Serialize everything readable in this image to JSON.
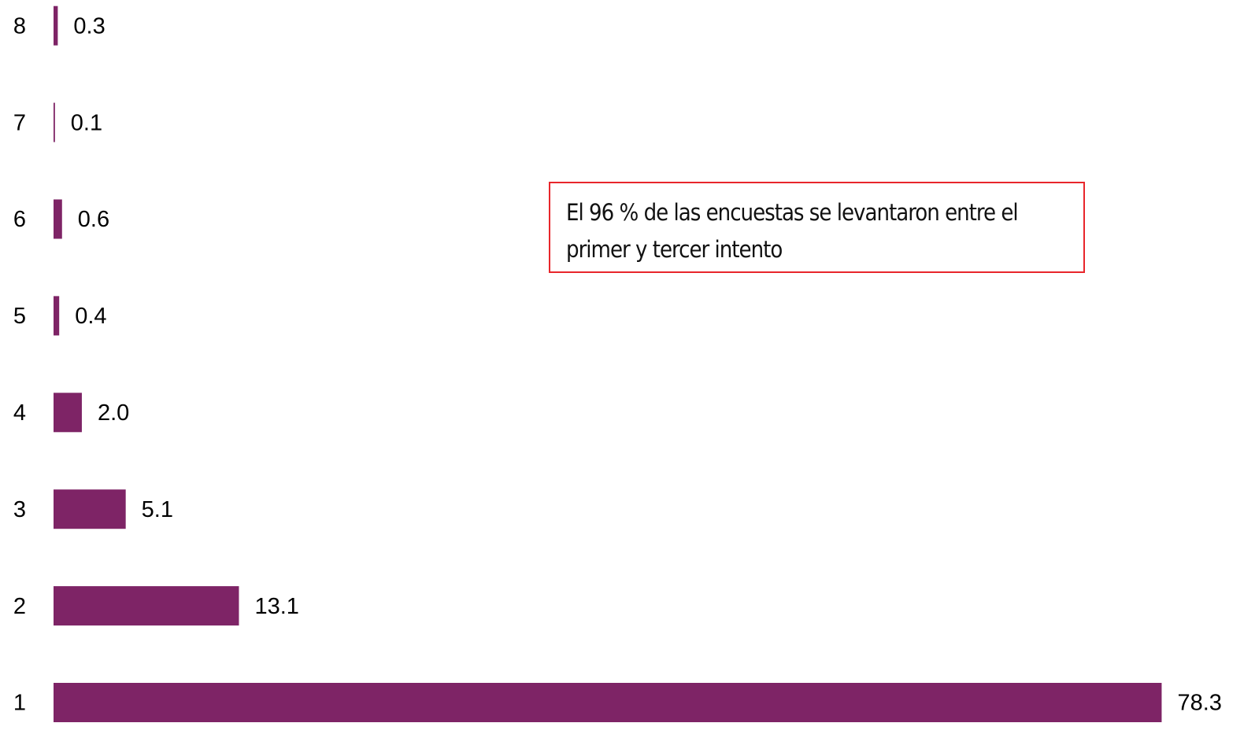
{
  "chart_data": {
    "type": "bar",
    "orientation": "horizontal",
    "categories": [
      "1",
      "2",
      "3",
      "4",
      "5",
      "6",
      "7",
      "8"
    ],
    "values": [
      78.3,
      13.1,
      5.1,
      2.0,
      0.4,
      0.6,
      0.1,
      0.3
    ],
    "value_labels": [
      "78.3",
      "13.1",
      "5.1",
      "2.0",
      "0.4",
      "0.6",
      "0.1",
      "0.3"
    ],
    "color": "#7e2466",
    "xlim": [
      0,
      80
    ],
    "annotation": "El 96 % de las encuestas se levantaron entre el primer y tercer intento"
  }
}
